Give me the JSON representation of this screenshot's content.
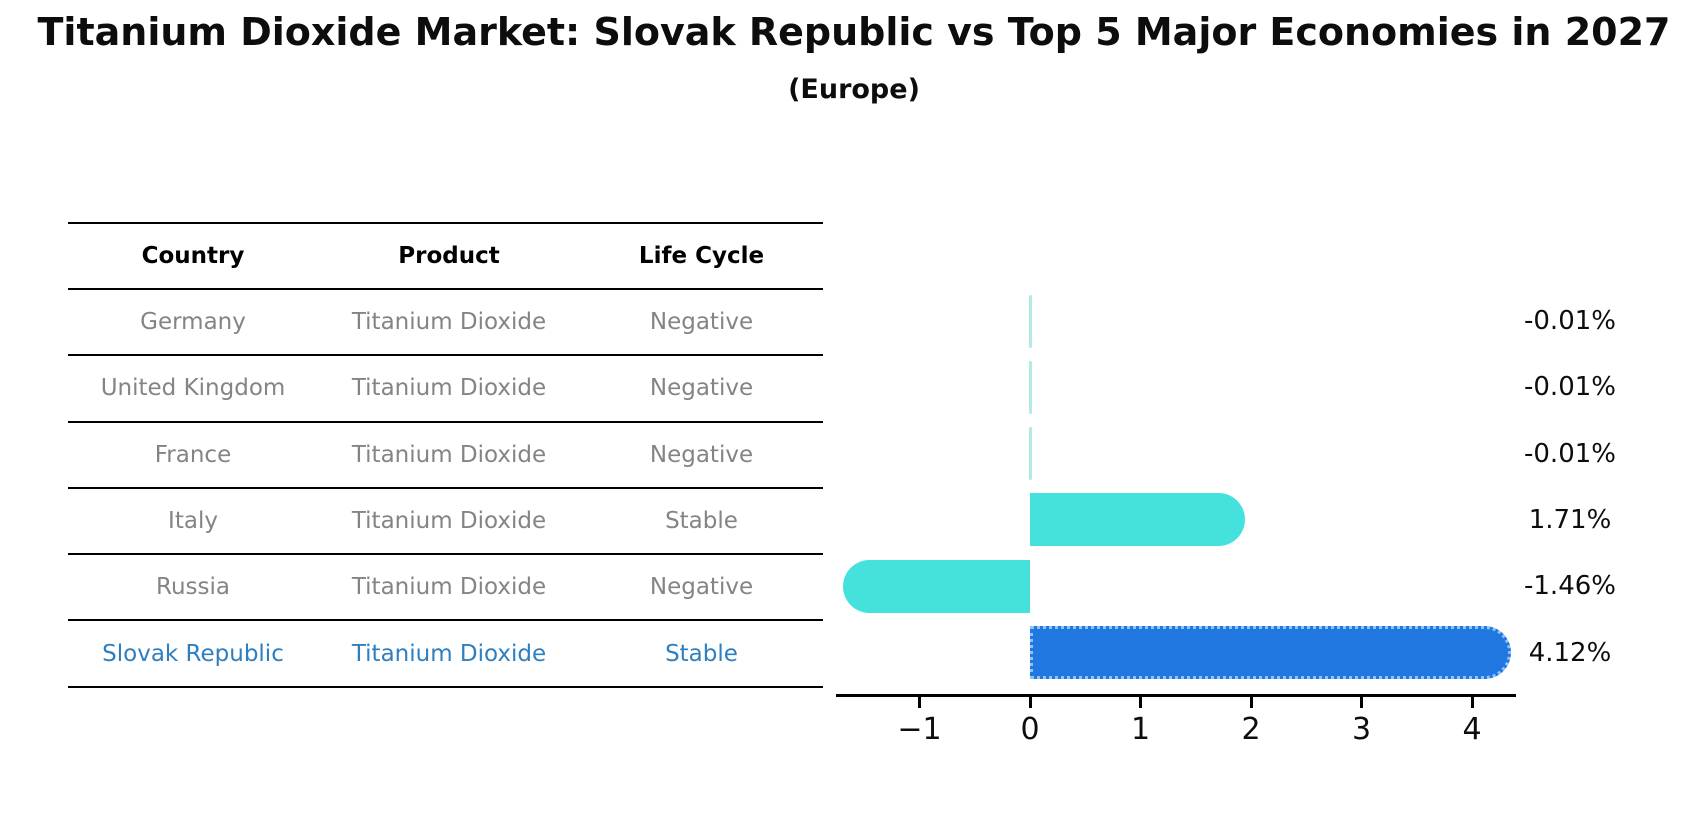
{
  "title": "Titanium Dioxide Market: Slovak Republic vs Top 5 Major Economies in 2027",
  "subtitle": "(Europe)",
  "table": {
    "headers": [
      "Country",
      "Product",
      "Life Cycle"
    ],
    "rows": [
      {
        "country": "Germany",
        "product": "Titanium Dioxide",
        "life_cycle": "Negative",
        "highlight": false
      },
      {
        "country": "United Kingdom",
        "product": "Titanium Dioxide",
        "life_cycle": "Negative",
        "highlight": false
      },
      {
        "country": "France",
        "product": "Titanium Dioxide",
        "life_cycle": "Negative",
        "highlight": false
      },
      {
        "country": "Italy",
        "product": "Titanium Dioxide",
        "life_cycle": "Stable",
        "highlight": false
      },
      {
        "country": "Russia",
        "product": "Titanium Dioxide",
        "life_cycle": "Negative",
        "highlight": false
      },
      {
        "country": "Slovak Republic",
        "product": "Titanium Dioxide",
        "life_cycle": "Stable",
        "highlight": true
      }
    ]
  },
  "chart_data": {
    "type": "bar",
    "orientation": "horizontal",
    "title": "Titanium Dioxide Market: Slovak Republic vs Top 5 Major Economies in 2027",
    "subtitle": "(Europe)",
    "categories": [
      "Germany",
      "United Kingdom",
      "France",
      "Italy",
      "Russia",
      "Slovak Republic"
    ],
    "values": [
      -0.01,
      -0.01,
      -0.01,
      1.71,
      -1.46,
      4.12
    ],
    "value_labels": [
      "-0.01%",
      "-0.01%",
      "-0.01%",
      "1.71%",
      "-1.46%",
      "4.12%"
    ],
    "highlight_index": 5,
    "x_ticks": [
      "−1",
      "0",
      "1",
      "2",
      "3",
      "4"
    ],
    "x_tick_values": [
      -1,
      0,
      1,
      2,
      3,
      4
    ],
    "xlim": [
      -1.76,
      4.4
    ],
    "grid": false,
    "legend": "none",
    "colors": {
      "default_bar": "#45e2dd",
      "sliver_bar": "#b2eae8",
      "highlight_bar": "#2077df",
      "highlight_border": "#8fc3f7",
      "axis": "#000000",
      "muted_text": "#848484",
      "highlight_text": "#2e7fc0",
      "label_text": "#0d0d0d"
    }
  }
}
